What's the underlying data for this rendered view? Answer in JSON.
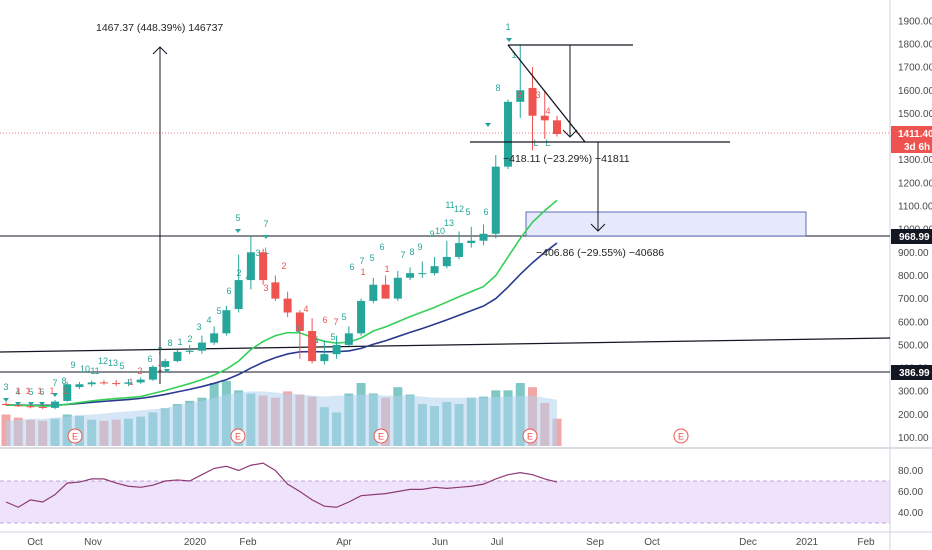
{
  "colors": {
    "up": "#26a69a",
    "down": "#ef5350",
    "ema_fast": "#34d058",
    "ema_slow": "#2b3a8f",
    "rsi": "#8e3a75",
    "rsi_band": "#efe3fb",
    "current_tag": "#ef5350",
    "level_tag": "#131722",
    "vol_up": "#7fc8c6",
    "vol_down": "#f2a6a6",
    "vol_ma": "#b3d4ee",
    "box_fill": "#e6e8fb",
    "box_stroke": "#3b4ba8"
  },
  "price_axis": {
    "ticks": [
      "1900.00",
      "1800.00",
      "1700.00",
      "1600.00",
      "1500.00",
      "1400.00",
      "1300.00",
      "1200.00",
      "1100.00",
      "1000.00",
      "900.00",
      "800.00",
      "700.00",
      "600.00",
      "500.00",
      "400.00",
      "300.00",
      "200.00",
      "100.00"
    ],
    "current_price": "1411.40",
    "countdown": "3d 6h",
    "level_high": "968.99",
    "level_low": "386.99"
  },
  "rsi_axis": {
    "ticks": [
      "80.00",
      "60.00",
      "40.00"
    ],
    "band": [
      30,
      70
    ]
  },
  "time_axis": {
    "labels": [
      "Oct",
      "Nov",
      "2020",
      "Feb",
      "Apr",
      "Jun",
      "Jul",
      "Sep",
      "Oct",
      "Dec",
      "2021",
      "Feb"
    ]
  },
  "annotations": {
    "measure_up": "1467.37 (448.39%) 146737",
    "measure_down1": "−418.11 (−23.29%) −41811",
    "measure_down2": "−406.86 (−29.55%) −40686",
    "earnings_marker": "E"
  },
  "td_labels": {
    "green": [
      "3",
      "4",
      "5",
      "6",
      "7",
      "8",
      "9",
      "10",
      "11",
      "12",
      "13",
      "5",
      "6",
      "7",
      "8",
      "1",
      "2",
      "3",
      "4",
      "5",
      "6",
      "2",
      "4",
      "3",
      "L",
      "5",
      "7",
      "1",
      "1",
      "5",
      "5",
      "6",
      "7",
      "5",
      "6",
      "7",
      "8",
      "9",
      "9",
      "10",
      "11",
      "12",
      "5",
      "6",
      "13",
      "8",
      "1",
      "1",
      "L",
      "L"
    ],
    "red": [
      "1",
      "1",
      "1",
      "1",
      "1",
      "1",
      "2",
      "1",
      "2",
      "3",
      "4",
      "6",
      "5",
      "7",
      "1",
      "1",
      "2",
      "3",
      "4",
      "6"
    ]
  },
  "chart_data": [
    {
      "type": "candlestick",
      "title": "",
      "x": [
        "2019-09-23",
        "2019-09-30",
        "2019-10-07",
        "2019-10-14",
        "2019-10-21",
        "2019-10-28",
        "2019-11-04",
        "2019-11-11",
        "2019-11-18",
        "2019-11-25",
        "2019-12-02",
        "2019-12-09",
        "2019-12-16",
        "2019-12-23",
        "2019-12-30",
        "2020-01-06",
        "2020-01-13",
        "2020-01-20",
        "2020-01-27",
        "2020-02-03",
        "2020-02-10",
        "2020-02-17",
        "2020-02-24",
        "2020-03-02",
        "2020-03-09",
        "2020-03-16",
        "2020-03-23",
        "2020-03-30",
        "2020-04-06",
        "2020-04-13",
        "2020-04-20",
        "2020-04-27",
        "2020-05-04",
        "2020-05-11",
        "2020-05-18",
        "2020-05-25",
        "2020-06-01",
        "2020-06-08",
        "2020-06-15",
        "2020-06-22",
        "2020-06-29",
        "2020-07-06",
        "2020-07-13",
        "2020-07-20",
        "2020-07-27",
        "2020-08-03"
      ],
      "open": [
        245,
        240,
        235,
        232,
        228,
        258,
        318,
        330,
        338,
        335,
        332,
        338,
        350,
        405,
        430,
        470,
        475,
        510,
        550,
        655,
        780,
        900,
        770,
        700,
        640,
        560,
        430,
        460,
        500,
        550,
        690,
        760,
        700,
        790,
        810,
        810,
        840,
        880,
        940,
        950,
        980,
        1270,
        1550,
        1610,
        1490,
        1470
      ],
      "high": [
        252,
        246,
        240,
        236,
        262,
        340,
        340,
        346,
        348,
        348,
        352,
        360,
        412,
        440,
        478,
        500,
        540,
        580,
        669,
        890,
        970,
        915,
        800,
        730,
        650,
        615,
        520,
        540,
        580,
        700,
        790,
        800,
        820,
        835,
        860,
        880,
        950,
        990,
        1010,
        1020,
        1320,
        1560,
        1794,
        1700,
        1600,
        1490
      ],
      "low": [
        238,
        232,
        226,
        222,
        222,
        255,
        310,
        320,
        328,
        322,
        322,
        332,
        345,
        400,
        425,
        460,
        462,
        500,
        540,
        640,
        740,
        760,
        690,
        620,
        440,
        420,
        415,
        440,
        495,
        540,
        680,
        700,
        690,
        780,
        790,
        800,
        830,
        870,
        920,
        930,
        960,
        1260,
        1480,
        1340,
        1390,
        1400
      ],
      "close": [
        240,
        235,
        232,
        228,
        255,
        330,
        330,
        338,
        336,
        332,
        338,
        350,
        405,
        430,
        470,
        475,
        510,
        550,
        650,
        780,
        900,
        780,
        700,
        640,
        560,
        430,
        460,
        500,
        550,
        690,
        760,
        700,
        790,
        810,
        810,
        840,
        880,
        940,
        950,
        980,
        1270,
        1550,
        1600,
        1490,
        1470,
        1411
      ],
      "ema_fast": [
        240,
        239,
        238,
        236,
        237,
        244,
        251,
        258,
        264,
        268,
        272,
        277,
        290,
        303,
        318,
        333,
        350,
        370,
        395,
        430,
        480,
        515,
        540,
        553,
        552,
        533,
        515,
        508,
        512,
        530,
        560,
        578,
        600,
        622,
        642,
        662,
        685,
        708,
        730,
        752,
        800,
        880,
        960,
        1030,
        1080,
        1125
      ],
      "ema_slow": [
        240,
        240,
        239,
        239,
        239,
        243,
        247,
        252,
        256,
        260,
        264,
        269,
        277,
        286,
        297,
        308,
        320,
        334,
        350,
        372,
        400,
        425,
        445,
        461,
        470,
        471,
        470,
        471,
        474,
        485,
        503,
        518,
        536,
        554,
        571,
        589,
        608,
        628,
        648,
        668,
        700,
        750,
        805,
        855,
        900,
        940
      ],
      "volume": [
        150,
        135,
        125,
        120,
        130,
        150,
        145,
        125,
        120,
        125,
        130,
        140,
        160,
        180,
        200,
        215,
        230,
        300,
        310,
        265,
        250,
        240,
        230,
        260,
        245,
        235,
        185,
        160,
        250,
        300,
        250,
        230,
        280,
        245,
        200,
        190,
        210,
        200,
        230,
        235,
        265,
        265,
        300,
        280,
        205,
        130
      ],
      "volume_ma": [
        120,
        125,
        130,
        130,
        135,
        140,
        145,
        150,
        155,
        160,
        165,
        170,
        175,
        180,
        195,
        205,
        215,
        230,
        245,
        255,
        260,
        260,
        255,
        250,
        245,
        240,
        235,
        240,
        240,
        245,
        245,
        240,
        240,
        240,
        235,
        230,
        230,
        230,
        230,
        230,
        232,
        235,
        238,
        240,
        230,
        220
      ],
      "rsi": [
        50,
        45,
        52,
        50,
        57,
        68,
        69,
        72,
        72,
        68,
        65,
        64,
        66,
        70,
        71,
        70,
        76,
        82,
        84,
        80,
        85,
        87,
        80,
        67,
        60,
        52,
        46,
        45,
        50,
        56,
        57,
        58,
        60,
        62,
        62,
        64,
        63,
        64,
        65,
        67,
        72,
        76,
        78,
        76,
        72,
        69
      ],
      "ylim": [
        80,
        1950
      ],
      "ylabel": "",
      "xlabel": ""
    }
  ]
}
